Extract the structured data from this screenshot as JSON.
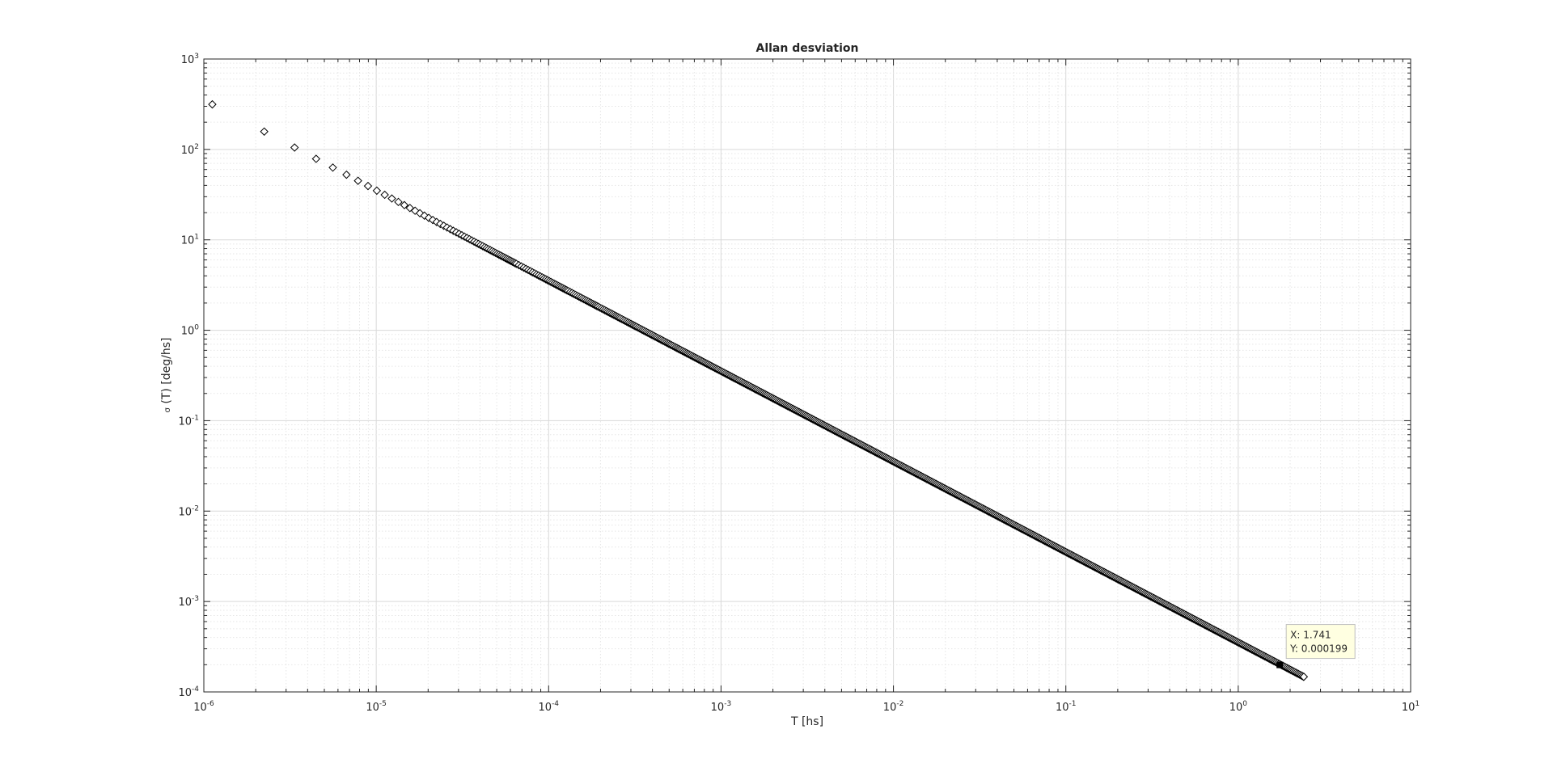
{
  "chart_data": {
    "type": "scatter",
    "title": "Allan desviation",
    "xlabel": "T [hs]",
    "ylabel_symbol": "σ",
    "ylabel_rest": " (T) [deg/hs]",
    "x_scale": "log",
    "y_scale": "log",
    "xlim": [
      1e-06,
      10
    ],
    "ylim": [
      0.0001,
      1000
    ],
    "x_ticks": [
      {
        "base": "10",
        "exp": "-6",
        "value": 1e-06
      },
      {
        "base": "10",
        "exp": "-5",
        "value": 1e-05
      },
      {
        "base": "10",
        "exp": "-4",
        "value": 0.0001
      },
      {
        "base": "10",
        "exp": "-3",
        "value": 0.001
      },
      {
        "base": "10",
        "exp": "-2",
        "value": 0.01
      },
      {
        "base": "10",
        "exp": "-1",
        "value": 0.1
      },
      {
        "base": "10",
        "exp": "0",
        "value": 1
      },
      {
        "base": "10",
        "exp": "1",
        "value": 10
      }
    ],
    "y_ticks": [
      {
        "base": "10",
        "exp": "-4",
        "value": 0.0001
      },
      {
        "base": "10",
        "exp": "-3",
        "value": 0.001
      },
      {
        "base": "10",
        "exp": "-2",
        "value": 0.01
      },
      {
        "base": "10",
        "exp": "-1",
        "value": 0.1
      },
      {
        "base": "10",
        "exp": "0",
        "value": 1
      },
      {
        "base": "10",
        "exp": "1",
        "value": 10
      },
      {
        "base": "10",
        "exp": "2",
        "value": 100
      },
      {
        "base": "10",
        "exp": "3",
        "value": 1000
      }
    ],
    "grid": true,
    "minor_grid": true,
    "marker": "diamond",
    "series": [
      {
        "sampling_step": 1.12e-06,
        "first_value": 315,
        "decay_exponent": -1,
        "x_min": 1.12e-06,
        "x_max": 2.4
      }
    ],
    "datatip": {
      "x": 1.741,
      "y": 0.000199,
      "x_text": "X: 1.741",
      "y_text": "Y: 0.000199"
    }
  }
}
